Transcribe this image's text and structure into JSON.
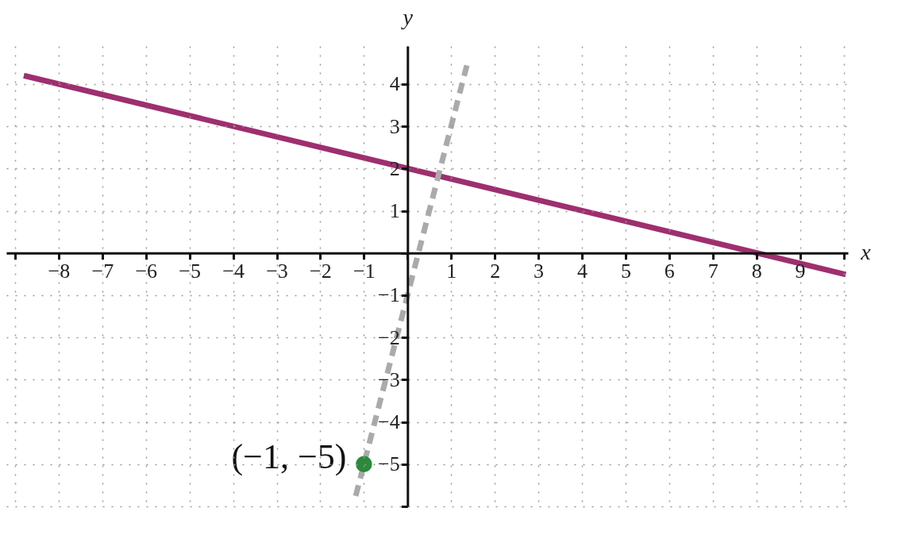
{
  "chart_data": {
    "type": "line",
    "xlabel": "x",
    "ylabel": "y",
    "grid": true,
    "xlim": [
      -9.2,
      10.1
    ],
    "ylim": [
      -6,
      4.9
    ],
    "xticks": [
      {
        "value": -9,
        "label": null
      },
      {
        "value": -8,
        "label": "−8"
      },
      {
        "value": -7,
        "label": "−7"
      },
      {
        "value": -6,
        "label": "−6"
      },
      {
        "value": -5,
        "label": "−5"
      },
      {
        "value": -4,
        "label": "−4"
      },
      {
        "value": -3,
        "label": "−3"
      },
      {
        "value": -2,
        "label": "−2"
      },
      {
        "value": -1,
        "label": "−1"
      },
      {
        "value": 0,
        "label": null
      },
      1,
      2,
      3,
      4,
      5,
      6,
      7,
      8,
      9,
      {
        "value": 10,
        "label": null
      }
    ],
    "yticks": [
      {
        "value": -6,
        "label": null
      },
      {
        "value": -5,
        "label": "−5"
      },
      {
        "value": -4,
        "label": "−4"
      },
      {
        "value": -3,
        "label": "−3"
      },
      {
        "value": -2,
        "label": "−2"
      },
      {
        "value": -1,
        "label": "−1"
      },
      {
        "value": 0,
        "label": null
      },
      1,
      2,
      3,
      4
    ],
    "series": [
      {
        "type": "line",
        "color": "#9e2f6f",
        "x": [
          -8.8,
          10.05
        ],
        "values": [
          4.2,
          -0.51
        ]
      },
      {
        "type": "line",
        "color": "#aaaaaa",
        "line_style": "dashed",
        "x": [
          -1.22,
          1.37
        ],
        "values": [
          -5.88,
          4.48
        ]
      },
      {
        "type": "scatter",
        "color": "#2a8a3a",
        "marker": "circle",
        "x": [
          -1
        ],
        "values": [
          -5
        ]
      }
    ],
    "annotations": [
      {
        "text": "(−1, −5)",
        "x": -1,
        "y": -5
      }
    ]
  }
}
